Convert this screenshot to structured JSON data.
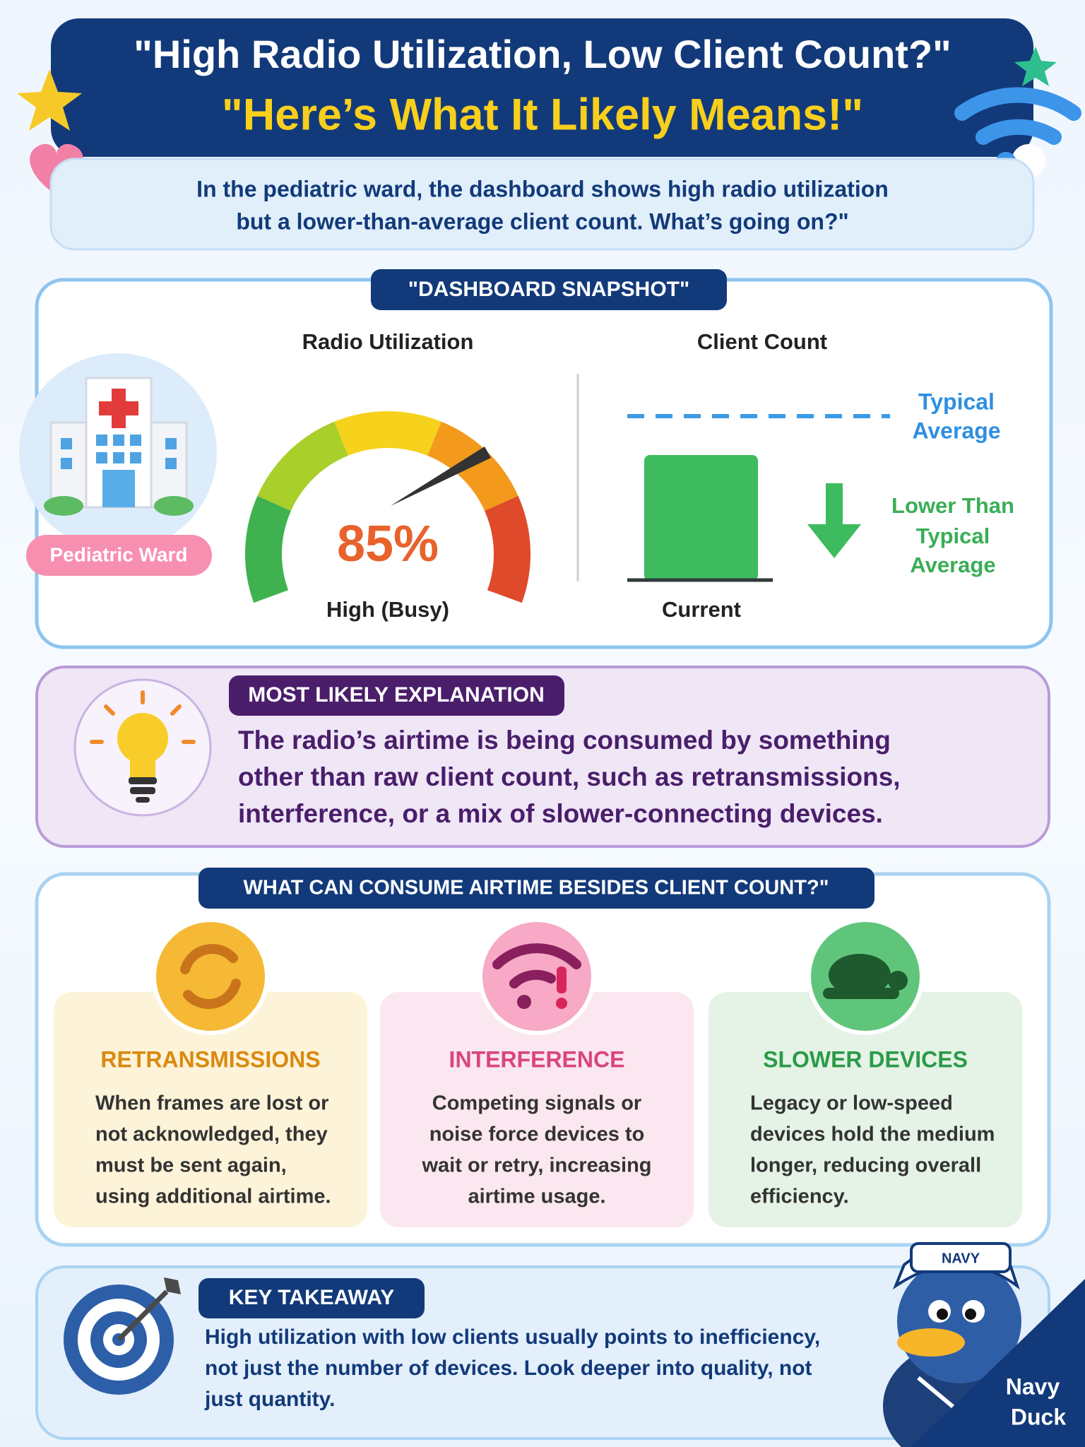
{
  "header": {
    "title": "\"High Radio Utilization, Low Client Count?\"",
    "subtitle": "\"Here’s What It Likely Means!\""
  },
  "intro": [
    "In the pediatric ward, the dashboard shows high radio utilization",
    "but a lower-than-average client count. What’s going on?\""
  ],
  "snapshot": {
    "tag": "\"DASHBOARD SNAPSHOT\"",
    "location": "Pediatric Ward",
    "utilization": {
      "title": "Radio Utilization",
      "value": "85%",
      "status": "High (Busy)"
    },
    "clients": {
      "title": "Client Count",
      "reference": [
        "Typical",
        "Average"
      ],
      "note": [
        "Lower Than",
        "Typical",
        "Average"
      ],
      "bar": "Current"
    }
  },
  "explanation": {
    "tag": "MOST LIKELY EXPLANATION",
    "lines": [
      "The radio’s airtime is being consumed by something",
      "other than raw client count, such as retransmissions,",
      "interference, or a mix of slower-connecting devices."
    ]
  },
  "causes": {
    "tag": "WHAT CAN CONSUME AIRTIME BESIDES CLIENT COUNT?\"",
    "items": [
      {
        "title": "RETRANSMISSIONS",
        "lines": [
          "When frames are lost or",
          "not acknowledged, they",
          "must be sent again,",
          "using additional airtime."
        ]
      },
      {
        "title": "INTERFERENCE",
        "lines": [
          "Competing signals or",
          "noise force devices to",
          "wait or retry, increasing",
          "airtime usage."
        ]
      },
      {
        "title": "SLOWER DEVICES",
        "lines": [
          "Legacy or low-speed",
          "devices hold the medium",
          "longer, reducing overall",
          "efficiency."
        ]
      }
    ]
  },
  "takeaway": {
    "tag": "KEY TAKEAWAY",
    "lines": [
      "High utilization with low clients usually points to inefficiency,",
      "not just the number of devices. Look deeper into quality, not",
      "just quantity."
    ]
  },
  "mascot": {
    "hat": "NAVY",
    "brand": [
      "Navy",
      "Duck"
    ]
  }
}
